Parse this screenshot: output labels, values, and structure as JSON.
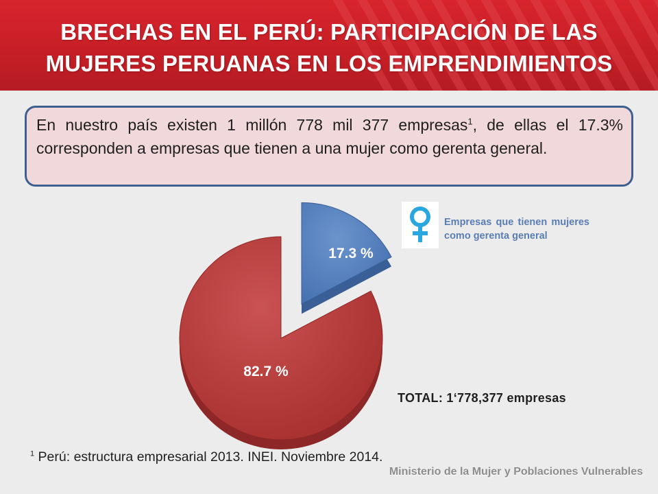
{
  "header": {
    "title_line1": "BRECHAS EN EL PERÚ: PARTICIPACIÓN DE LAS",
    "title_line2": "MUJERES PERUANAS EN LOS EMPRENDIMIENTOS"
  },
  "intro": {
    "text_before": "En nuestro país existen 1 millón 778 mil 377 empresas",
    "footnote_ref": "1",
    "text_after": ", de ellas el 17.3% corresponden a empresas que tienen a una mujer como gerenta general."
  },
  "chart_data": {
    "type": "pie",
    "values": [
      17.3,
      82.7
    ],
    "data_labels": [
      "17.3 %",
      "82.7 %"
    ],
    "colors": [
      "#4f7fbf",
      "#b8403f"
    ],
    "exploded": [
      true,
      false
    ],
    "legend": {
      "text": "Empresas que tienen mujeres como gerenta general",
      "icon": "female-symbol-icon",
      "placement": "right"
    }
  },
  "total_label": "TOTAL: 1‘778,377 empresas",
  "footnote": {
    "marker": "1",
    "text": " Perú: estructura empresarial 2013. INEI. Noviembre 2014."
  },
  "ministry": "Ministerio de la Mujer y Poblaciones Vulnerables",
  "colors": {
    "header_red": "#c71f27",
    "box_fill": "#f1d8da",
    "box_border": "#3f5f8f",
    "legend_text": "#5a7db4",
    "female_icon": "#2aa7e0"
  }
}
